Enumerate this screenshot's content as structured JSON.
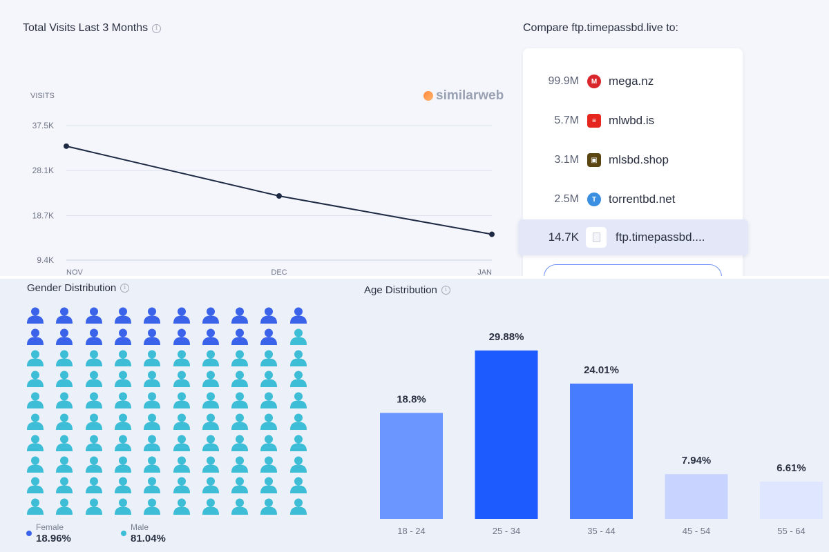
{
  "visits": {
    "title": "Total Visits Last 3 Months",
    "brand": "similarweb"
  },
  "chart_data": [
    {
      "type": "line",
      "title": "Total Visits Last 3 Months",
      "ylabel": "VISITS",
      "xlabel": "",
      "categories": [
        "NOV",
        "DEC",
        "JAN"
      ],
      "series": [
        {
          "name": "Visits",
          "values": [
            33200,
            22800,
            14800
          ]
        }
      ],
      "y_ticks": [
        {
          "value": 37500,
          "label": "37.5K"
        },
        {
          "value": 28100,
          "label": "28.1K"
        },
        {
          "value": 18700,
          "label": "18.7K"
        },
        {
          "value": 9400,
          "label": "9.4K"
        }
      ],
      "ylim": [
        9400,
        37500
      ],
      "grid": true,
      "color": "#1e2a44"
    },
    {
      "type": "bar",
      "title": "Age Distribution",
      "categories": [
        "18 - 24",
        "25 - 34",
        "35 - 44",
        "45 - 54",
        "55 - 64"
      ],
      "values": [
        18.8,
        29.88,
        24.01,
        7.94,
        6.61
      ],
      "value_labels": [
        "18.8%",
        "29.88%",
        "24.01%",
        "7.94%",
        "6.61%"
      ],
      "colors": [
        "#6c96ff",
        "#1e5bff",
        "#477cff",
        "#c8d4ff",
        "#dfe6ff"
      ],
      "ylim": [
        0,
        30
      ]
    }
  ],
  "compare": {
    "title": "Compare ftp.timepassbd.live to:",
    "items": [
      {
        "value": "99.9M",
        "site": "mega.nz",
        "icon": "mega-icon",
        "color": "#d9262c",
        "glyph": "M"
      },
      {
        "value": "5.7M",
        "site": "mlwbd.is",
        "icon": "mlwbd-icon",
        "color": "#e5261f",
        "glyph": "≡"
      },
      {
        "value": "3.1M",
        "site": "mlsbd.shop",
        "icon": "mlsbd-icon",
        "color": "#5a4412",
        "glyph": "▣"
      },
      {
        "value": "2.5M",
        "site": "torrentbd.net",
        "icon": "torrentbd-icon",
        "color": "#3a8fe0",
        "glyph": "T"
      }
    ],
    "current": {
      "value": "14.7K",
      "site": "ftp.timepassbd...."
    }
  },
  "gender": {
    "title": "Gender Distribution",
    "female_label": "Female",
    "female_pct": "18.96%",
    "female_count": 19,
    "male_label": "Male",
    "male_pct": "81.04%",
    "female_color": "#3a63ea",
    "male_color": "#3dbdd6"
  },
  "age": {
    "title": "Age Distribution"
  }
}
